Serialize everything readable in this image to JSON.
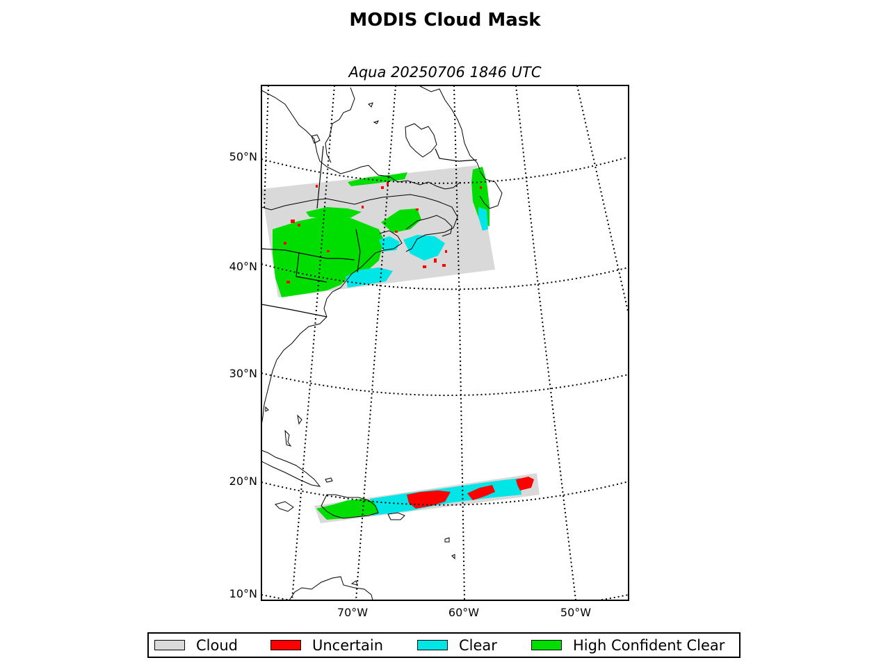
{
  "title": "MODIS Cloud Mask",
  "subtitle": "Aqua 20250706 1846 UTC",
  "lat_labels": [
    "50°N",
    "40°N",
    "30°N",
    "20°N",
    "10°N"
  ],
  "lon_labels": [
    "70°W",
    "60°W",
    "50°W"
  ],
  "legend": [
    {
      "label": "Cloud",
      "color": "#d9d9d9"
    },
    {
      "label": "Uncertain",
      "color": "#ff0000"
    },
    {
      "label": "Clear",
      "color": "#00e5e5"
    },
    {
      "label": "High Confident Clear",
      "color": "#00dd00"
    }
  ],
  "colors": {
    "cloud": "#d9d9d9",
    "uncertain": "#ff0000",
    "clear": "#00e5e5",
    "high_confident_clear": "#00dd00"
  }
}
